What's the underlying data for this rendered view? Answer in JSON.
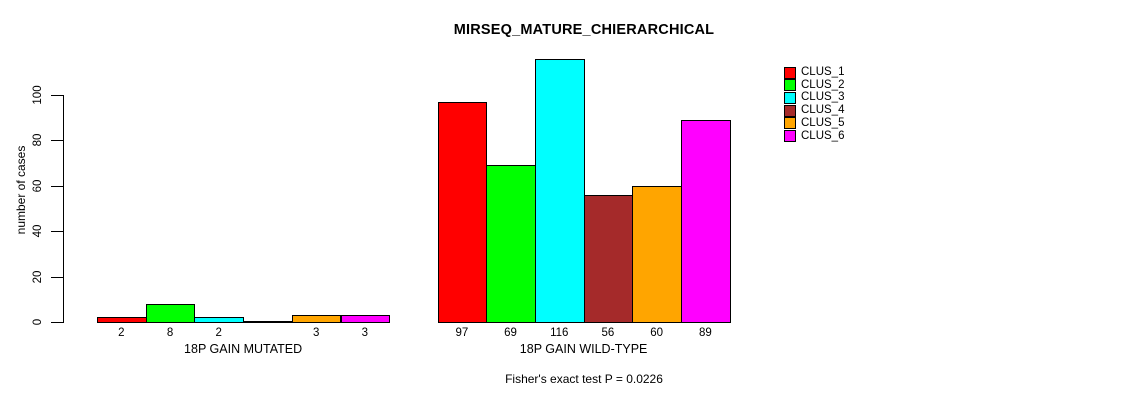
{
  "chart_data": {
    "type": "bar",
    "title": "MIRSEQ_MATURE_CHIERARCHICAL",
    "ylabel": "number of cases",
    "xlabel": "",
    "yticks": [
      0,
      20,
      40,
      60,
      80,
      100
    ],
    "ylim": [
      0,
      120
    ],
    "grid": false,
    "legend_position": "top-right",
    "series": [
      "CLUS_1",
      "CLUS_2",
      "CLUS_3",
      "CLUS_4",
      "CLUS_5",
      "CLUS_6"
    ],
    "series_colors": [
      "#ff0000",
      "#00ff00",
      "#00ffff",
      "#a52a2a",
      "#ffa500",
      "#ff00ff"
    ],
    "groups": [
      {
        "label": "18P GAIN MUTATED",
        "values": [
          2,
          8,
          2,
          0,
          3,
          3
        ]
      },
      {
        "label": "18P GAIN WILD-TYPE",
        "values": [
          97,
          69,
          116,
          56,
          60,
          89
        ]
      }
    ],
    "bar_value_labels": [
      [
        "2",
        "8",
        "2",
        "",
        "3",
        "3"
      ],
      [
        "97",
        "69",
        "116",
        "56",
        "60",
        "89"
      ]
    ],
    "annotation": "Fisher's exact test P = 0.0226"
  }
}
